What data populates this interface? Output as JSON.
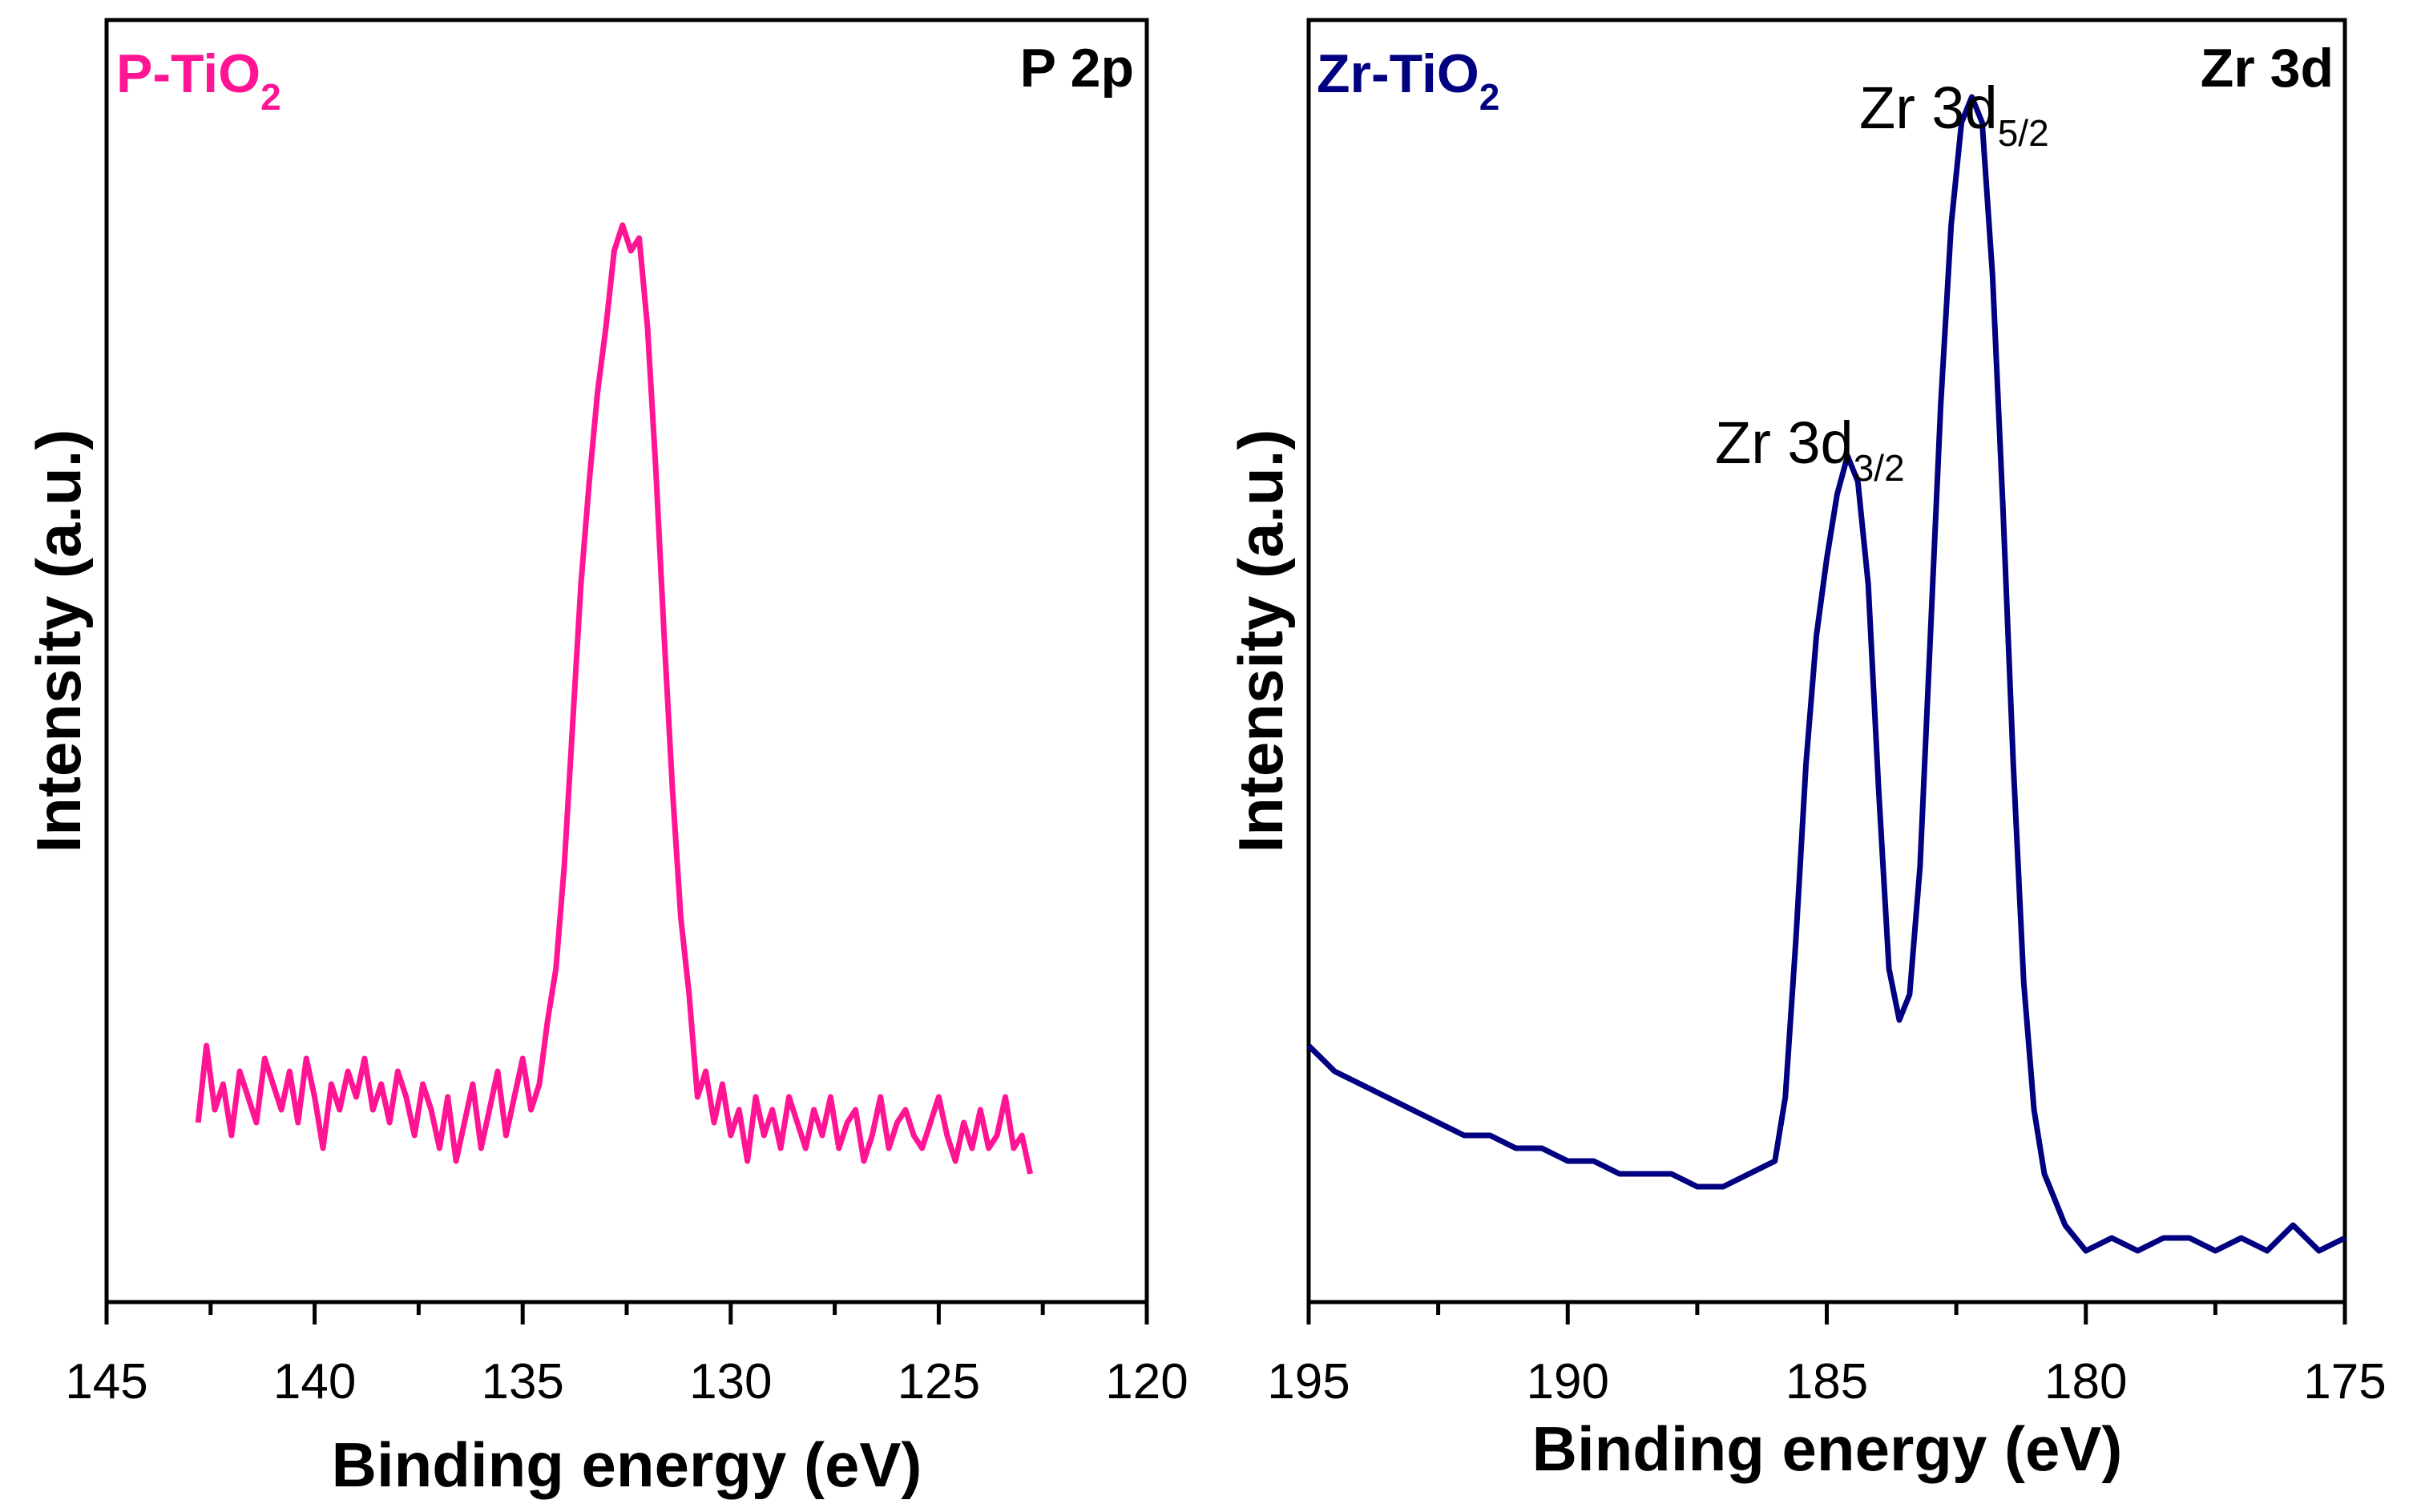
{
  "chart_data": [
    {
      "type": "line",
      "sample_label": "P-TiO",
      "sample_sub": "2",
      "core_level": "P 2p",
      "xlabel": "Binding energy (eV)",
      "ylabel": "Intensity (a.u.)",
      "xlim": [
        145,
        120
      ],
      "ylim": [
        0,
        100
      ],
      "x_ticks": [
        145,
        140,
        135,
        130,
        125,
        120
      ],
      "color": "#ff1493",
      "series": [
        {
          "name": "P-TiO2",
          "x": [
            142.8,
            142.6,
            142.4,
            142.2,
            142.0,
            141.8,
            141.6,
            141.4,
            141.2,
            141.0,
            140.8,
            140.6,
            140.4,
            140.2,
            140.0,
            139.8,
            139.6,
            139.4,
            139.2,
            139.0,
            138.8,
            138.6,
            138.4,
            138.2,
            138.0,
            137.8,
            137.6,
            137.4,
            137.2,
            137.0,
            136.8,
            136.6,
            136.4,
            136.2,
            136.0,
            135.8,
            135.6,
            135.4,
            135.2,
            135.0,
            134.8,
            134.6,
            134.4,
            134.2,
            134.0,
            133.8,
            133.6,
            133.4,
            133.2,
            133.0,
            132.8,
            132.6,
            132.4,
            132.2,
            132.0,
            131.8,
            131.6,
            131.4,
            131.2,
            131.0,
            130.8,
            130.6,
            130.4,
            130.2,
            130.0,
            129.8,
            129.6,
            129.4,
            129.2,
            129.0,
            128.8,
            128.6,
            128.4,
            128.2,
            128.0,
            127.8,
            127.6,
            127.4,
            127.2,
            127.0,
            126.8,
            126.6,
            126.4,
            126.2,
            126.0,
            125.8,
            125.6,
            125.4,
            125.2,
            125.0,
            124.8,
            124.6,
            124.4,
            124.2,
            124.0,
            123.8,
            123.6,
            123.4,
            123.2,
            123.0,
            122.8
          ],
          "y": [
            14,
            20,
            15,
            17,
            13,
            18,
            16,
            14,
            19,
            17,
            15,
            18,
            14,
            19,
            16,
            12,
            17,
            15,
            18,
            16,
            19,
            15,
            17,
            14,
            18,
            16,
            13,
            17,
            15,
            12,
            16,
            11,
            14,
            17,
            12,
            15,
            18,
            13,
            16,
            19,
            15,
            17,
            22,
            26,
            34,
            45,
            56,
            64,
            71,
            76,
            82,
            84,
            82,
            83,
            76,
            65,
            52,
            40,
            30,
            24,
            16,
            18,
            14,
            17,
            13,
            15,
            11,
            16,
            13,
            15,
            12,
            16,
            14,
            12,
            15,
            13,
            16,
            12,
            14,
            15,
            11,
            13,
            16,
            12,
            14,
            15,
            13,
            12,
            14,
            16,
            13,
            11,
            14,
            12,
            15,
            12,
            13,
            16,
            12,
            13,
            10
          ]
        }
      ]
    },
    {
      "type": "line",
      "sample_label": "Zr-TiO",
      "sample_sub": "2",
      "core_level": "Zr 3d",
      "xlabel": "Binding energy (eV)",
      "ylabel": "Intensity (a.u.)",
      "xlim": [
        195,
        175
      ],
      "ylim": [
        0,
        100
      ],
      "x_ticks": [
        195,
        190,
        185,
        180,
        175
      ],
      "color": "#000080",
      "annotations": [
        {
          "text": "Zr 3d",
          "sub": "3/2",
          "x": 184.6,
          "y": 66
        },
        {
          "text": "Zr 3d",
          "sub": "5/2",
          "x": 182.0,
          "y": 94
        }
      ],
      "series": [
        {
          "name": "Zr-TiO2",
          "x": [
            195.0,
            194.5,
            194.0,
            193.5,
            193.0,
            192.5,
            192.0,
            191.5,
            191.0,
            190.5,
            190.0,
            189.5,
            189.0,
            188.5,
            188.0,
            187.5,
            187.0,
            186.5,
            186.0,
            185.8,
            185.6,
            185.4,
            185.2,
            185.0,
            184.8,
            184.6,
            184.4,
            184.2,
            184.0,
            183.8,
            183.6,
            183.4,
            183.2,
            183.0,
            182.8,
            182.6,
            182.4,
            182.2,
            182.0,
            181.8,
            181.6,
            181.4,
            181.2,
            181.0,
            180.8,
            180.6,
            180.4,
            180.2,
            180.0,
            179.5,
            179.0,
            178.5,
            178.0,
            177.5,
            177.0,
            176.5,
            176.0,
            175.5,
            175.0
          ],
          "y": [
            20,
            18,
            17,
            16,
            15,
            14,
            13,
            13,
            12,
            12,
            11,
            11,
            10,
            10,
            10,
            9,
            9,
            10,
            11,
            16,
            28,
            42,
            52,
            58,
            63,
            66,
            64,
            56,
            40,
            26,
            22,
            24,
            34,
            52,
            70,
            84,
            92,
            94,
            92,
            80,
            62,
            42,
            25,
            15,
            10,
            8,
            6,
            5,
            4,
            5,
            4,
            5,
            5,
            4,
            5,
            4,
            6,
            4,
            5
          ]
        }
      ]
    }
  ]
}
